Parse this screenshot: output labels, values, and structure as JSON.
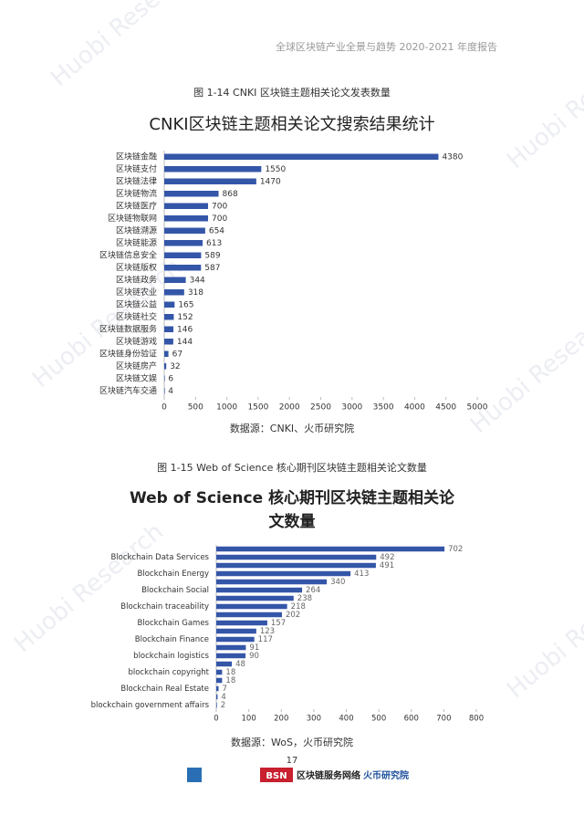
{
  "header": {
    "title": "全球区块链产业全景与趋势 2020-2021 年度报告"
  },
  "watermark": "Huobi Research",
  "chart_data": [
    {
      "type": "bar",
      "orientation": "horizontal",
      "caption": "图 1-14 CNKI 区块链主题相关论文发表数量",
      "title": "CNKI区块链主题相关论文搜索结果统计",
      "categories": [
        "区块链金融",
        "区块链支付",
        "区块链法律",
        "区块链物流",
        "区块链医疗",
        "区块链物联网",
        "区块链溯源",
        "区块链能源",
        "区块链信息安全",
        "区块链版权",
        "区块链政务",
        "区块链农业",
        "区块链公益",
        "区块链社交",
        "区块链数据服务",
        "区块链游戏",
        "区块链身份验证",
        "区块链房产",
        "区块链文娱",
        "区块链汽车交通"
      ],
      "values": [
        4380,
        1550,
        1470,
        868,
        700,
        700,
        654,
        613,
        589,
        587,
        344,
        318,
        165,
        152,
        146,
        144,
        67,
        32,
        6,
        4
      ],
      "color": "#3456a8",
      "xlim": [
        0,
        5000
      ],
      "xticks": [
        0,
        500,
        1000,
        1500,
        2000,
        2500,
        3000,
        3500,
        4000,
        4500,
        5000
      ],
      "source": "数据源：CNKI、火币研究院"
    },
    {
      "type": "bar",
      "orientation": "horizontal",
      "caption": "图 1-15 Web of Science  核心期刊区块链主题相关论文数量",
      "title": "Web of Science 核心期刊区块链主题相关论文数量",
      "categories": [
        null,
        "Blockchain Data Services",
        null,
        "Blockchain Energy",
        null,
        "Blockchain Social",
        null,
        "Blockchain traceability",
        null,
        "Blockchain Games",
        null,
        "Blockchain Finance",
        null,
        "blockchain logistics",
        null,
        "blockchain copyright",
        null,
        "Blockchain Real Estate",
        null,
        "blockchain government affairs"
      ],
      "values": [
        702,
        492,
        491,
        413,
        340,
        264,
        238,
        218,
        202,
        157,
        123,
        117,
        91,
        90,
        48,
        18,
        18,
        7,
        4,
        2
      ],
      "color": "#3456a8",
      "xlim": [
        0,
        800
      ],
      "xticks": [
        0,
        100,
        200,
        300,
        400,
        500,
        600,
        700,
        800
      ],
      "source": "数据源：WoS，火币研究院"
    }
  ],
  "footer": {
    "page": "17",
    "logo_text_1": "BSN",
    "logo_text_2": "区块链服务网络",
    "logo_text_3": "火币研究院"
  }
}
